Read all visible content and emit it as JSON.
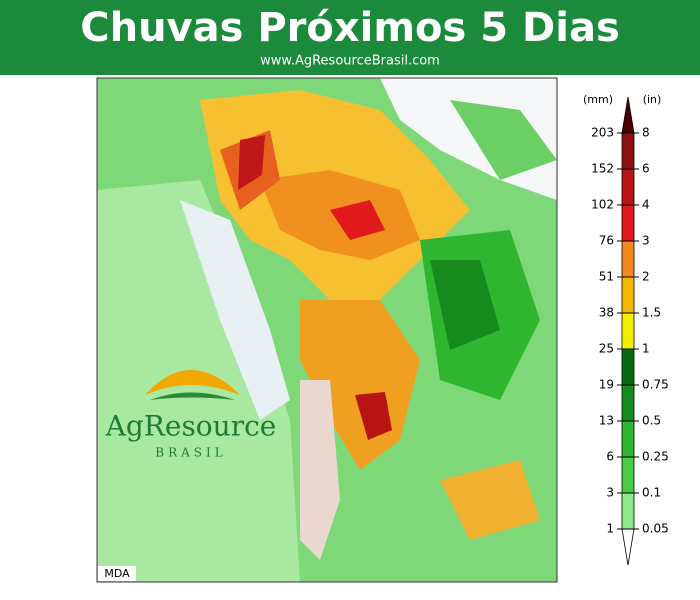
{
  "header": {
    "title": "Chuvas Próximos 5 Dias",
    "subtitle": "www.AgResourceBrasil.com"
  },
  "map": {
    "credit": "MDA",
    "logo": {
      "name": "AgResource",
      "tagline": "BRASIL"
    }
  },
  "legend": {
    "mm_unit": "(mm)",
    "in_unit": "(in)",
    "levels": [
      {
        "mm": "203",
        "in": "8"
      },
      {
        "mm": "152",
        "in": "6"
      },
      {
        "mm": "102",
        "in": "4"
      },
      {
        "mm": "76",
        "in": "3"
      },
      {
        "mm": "51",
        "in": "2"
      },
      {
        "mm": "38",
        "in": "1.5"
      },
      {
        "mm": "25",
        "in": "1"
      },
      {
        "mm": "19",
        "in": "0.75"
      },
      {
        "mm": "13",
        "in": "0.5"
      },
      {
        "mm": "6",
        "in": "0.25"
      },
      {
        "mm": "3",
        "in": "0.1"
      },
      {
        "mm": "1",
        "in": "0.05"
      }
    ],
    "colors": [
      "#4a0000",
      "#8b1010",
      "#b81414",
      "#e01a1a",
      "#f08a1e",
      "#f5b800",
      "#f2ee00",
      "#0a6a14",
      "#178a1e",
      "#2fb52f",
      "#4ccc44",
      "#8eea88",
      "#ffffff"
    ]
  }
}
